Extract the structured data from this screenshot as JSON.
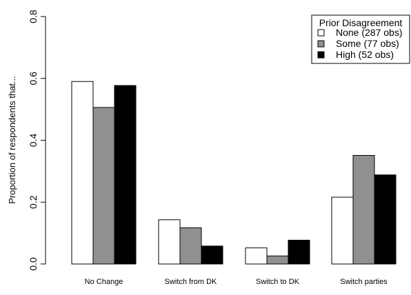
{
  "chart_data": {
    "type": "bar",
    "title": "",
    "xlabel": "",
    "ylabel": "Proportion of respondents that...",
    "ylim": [
      0,
      0.8
    ],
    "yticks": [
      "0.0",
      "0.2",
      "0.4",
      "0.6",
      "0.8"
    ],
    "categories": [
      "No Change",
      "Switch from DK",
      "Switch to DK",
      "Switch parties"
    ],
    "legend": {
      "title": "Prior Disagreement",
      "position": "top-right"
    },
    "series": [
      {
        "name": "None (287 obs)",
        "color": "#ffffff",
        "values": [
          0.59,
          0.143,
          0.052,
          0.216
        ]
      },
      {
        "name": "Some (77 obs)",
        "color": "#909090",
        "values": [
          0.506,
          0.117,
          0.026,
          0.351
        ]
      },
      {
        "name": "High (52 obs)",
        "color": "#000000",
        "values": [
          0.577,
          0.058,
          0.077,
          0.288
        ]
      }
    ]
  }
}
